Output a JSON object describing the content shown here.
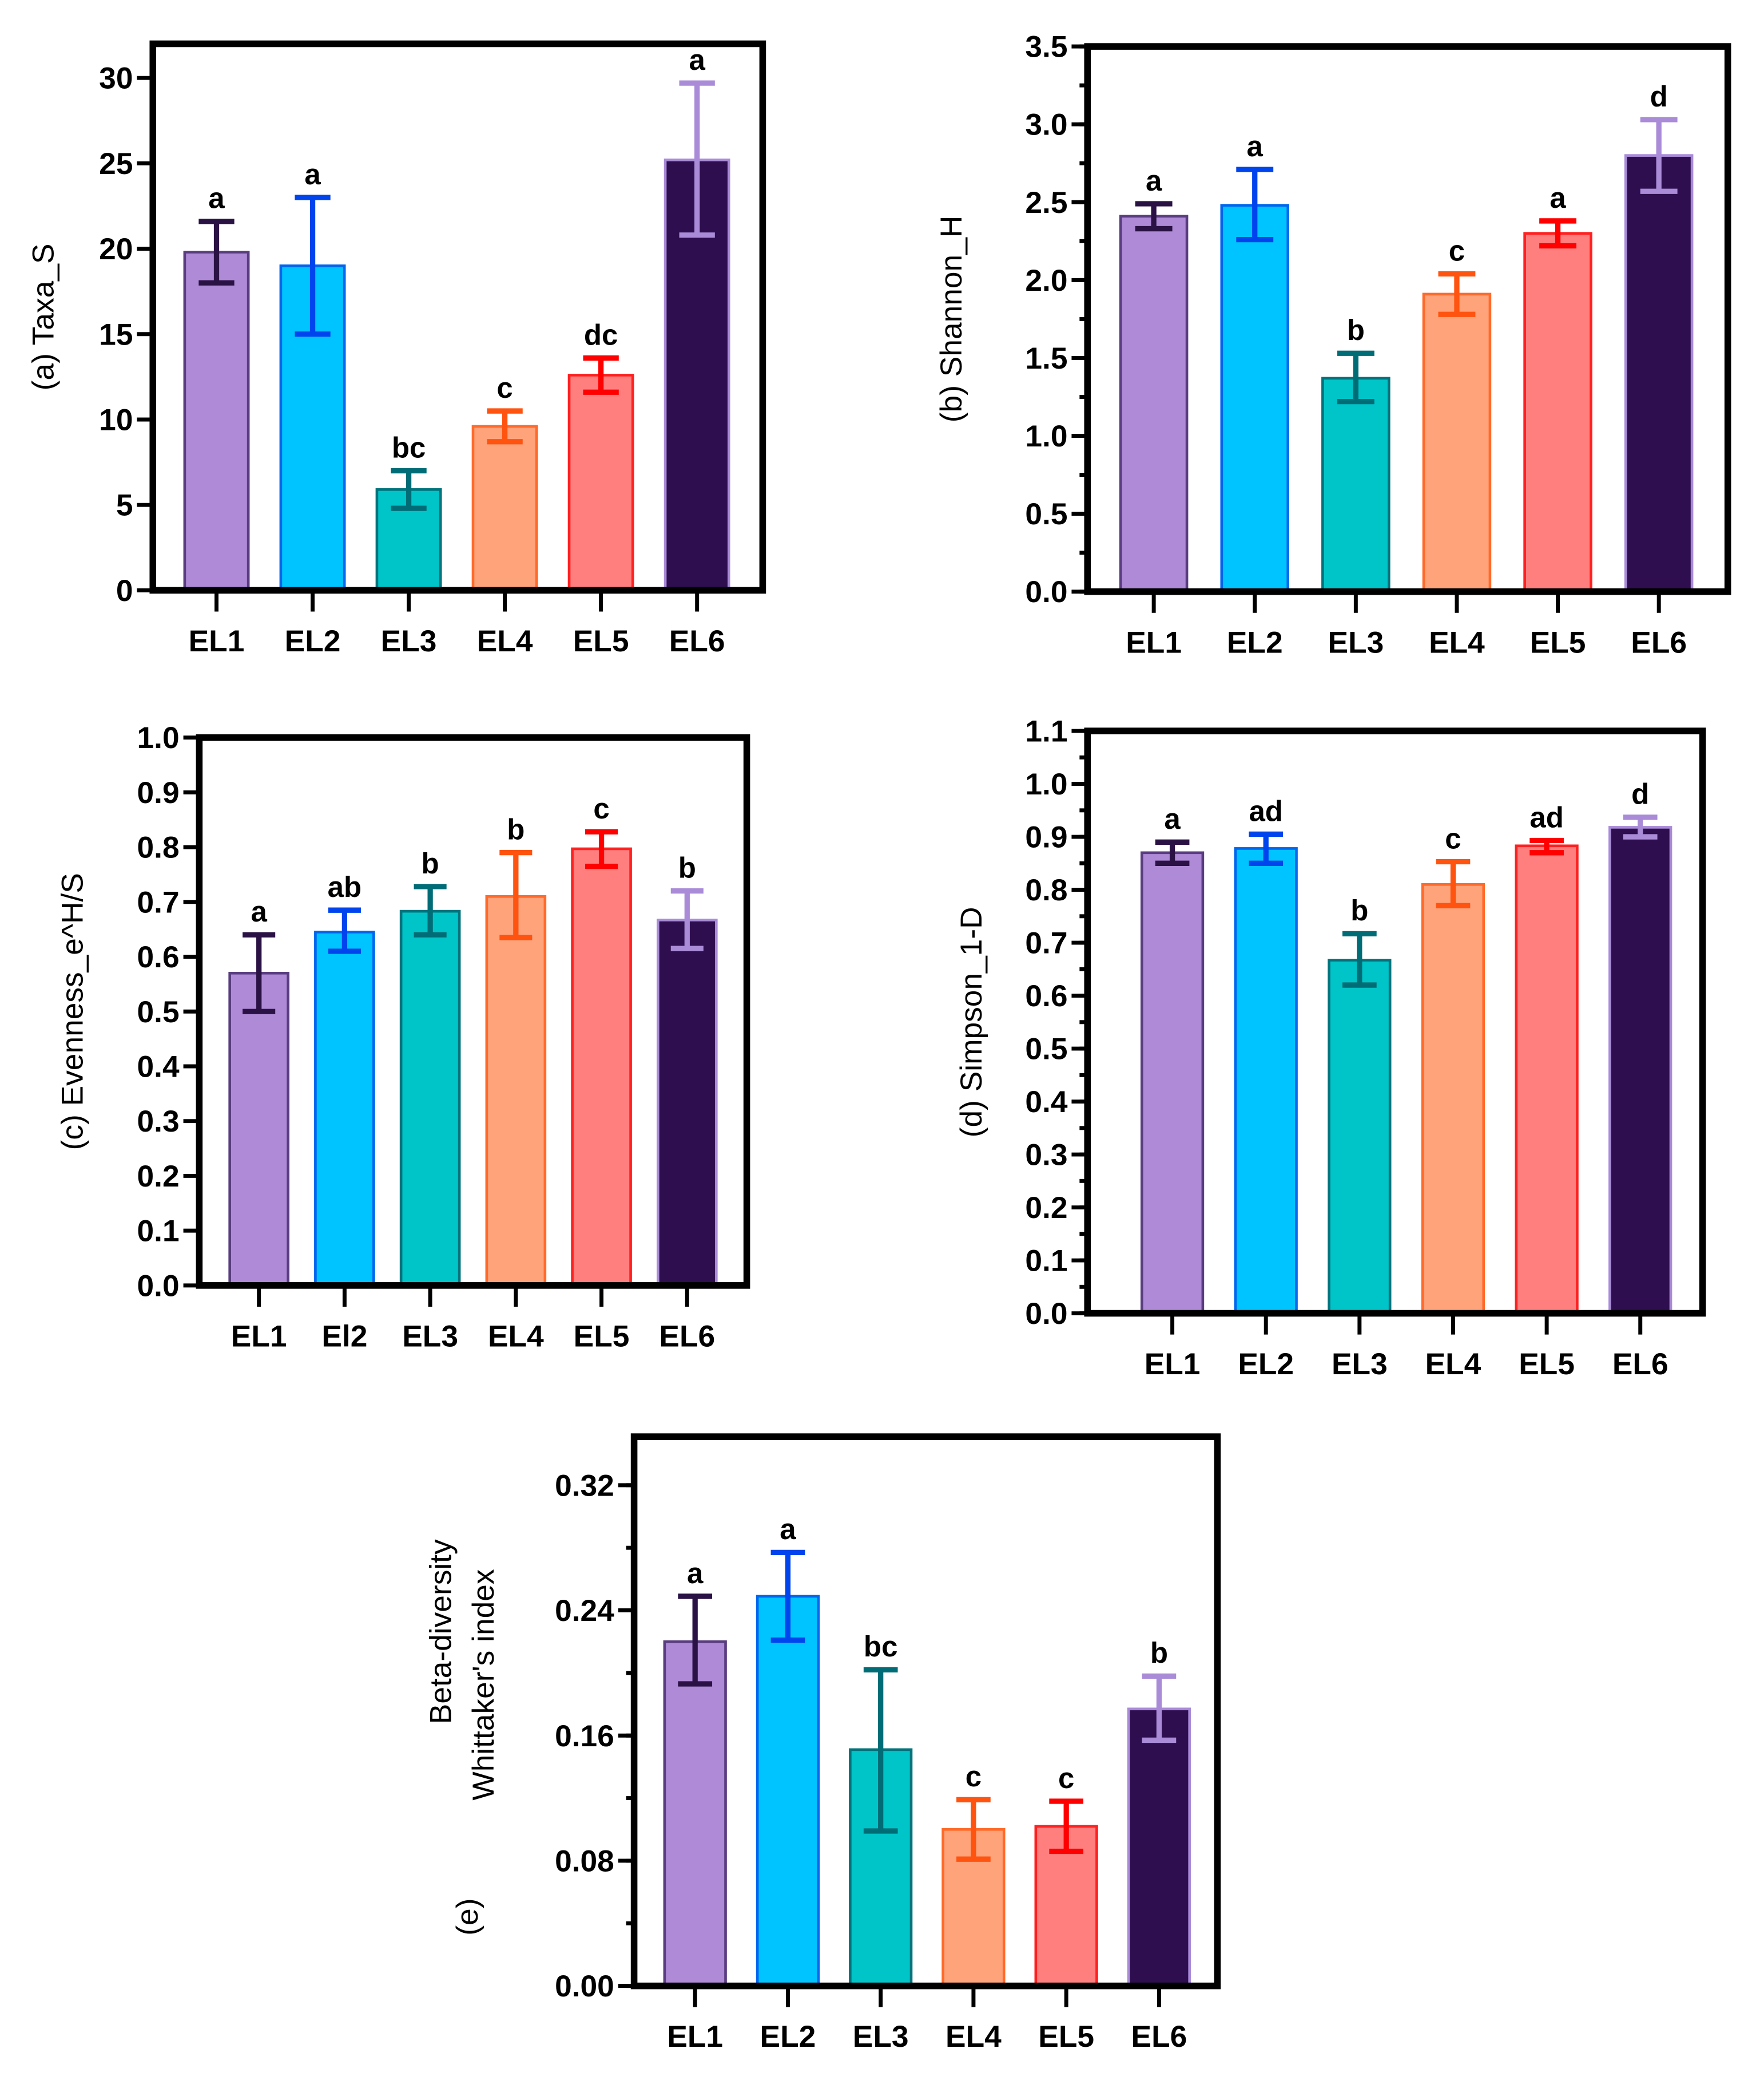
{
  "colors": {
    "fill": [
      "#AF8AD6",
      "#00C4FF",
      "#00C5C8",
      "#FFA37B",
      "#FF7F7F",
      "#2E0E4E"
    ],
    "stroke": [
      "#5A3D80",
      "#0066EE",
      "#00737C",
      "#FF6A2A",
      "#FF2020",
      "#A98BD8"
    ],
    "error": [
      "#2B1245",
      "#0044EE",
      "#006C76",
      "#FF5310",
      "#FF0000",
      "#A98BD8"
    ]
  },
  "chart_data": [
    {
      "id": "a",
      "type": "bar",
      "ylabel": "(a)  Taxa_S",
      "categories": [
        "EL1",
        "EL2",
        "EL3",
        "EL4",
        "EL5",
        "EL6"
      ],
      "values": [
        19.8,
        19.0,
        5.9,
        9.6,
        12.6,
        25.2
      ],
      "err_low": [
        18.0,
        15.0,
        4.8,
        8.7,
        11.6,
        20.8
      ],
      "err_high": [
        21.6,
        23.0,
        7.0,
        10.5,
        13.6,
        29.7
      ],
      "letters": [
        "a",
        "a",
        "bc",
        "c",
        "dc",
        "a"
      ],
      "ylim": [
        0,
        32
      ],
      "yticks": [
        "0",
        "5",
        "10",
        "15",
        "20",
        "25",
        "30"
      ],
      "ytick_values": [
        0,
        5,
        10,
        15,
        20,
        25,
        30
      ],
      "minor_step": null
    },
    {
      "id": "b",
      "type": "bar",
      "ylabel": "(b)  Shannon_H",
      "categories": [
        "EL1",
        "EL2",
        "EL3",
        "EL4",
        "EL5",
        "EL6"
      ],
      "values": [
        2.41,
        2.48,
        1.37,
        1.91,
        2.3,
        2.8
      ],
      "err_low": [
        2.33,
        2.26,
        1.22,
        1.78,
        2.22,
        2.57
      ],
      "err_high": [
        2.49,
        2.71,
        1.53,
        2.04,
        2.38,
        3.03
      ],
      "letters": [
        "a",
        "a",
        "b",
        "c",
        "a",
        "d"
      ],
      "ylim": [
        0,
        3.5
      ],
      "yticks": [
        "0.0",
        "0.5",
        "1.0",
        "1.5",
        "2.0",
        "2.5",
        "3.0",
        "3.5"
      ],
      "ytick_values": [
        0,
        0.5,
        1.0,
        1.5,
        2.0,
        2.5,
        3.0,
        3.5
      ],
      "minor_step": 0.25
    },
    {
      "id": "c",
      "type": "bar",
      "ylabel": "(c)  Evenness_e^H/S",
      "categories": [
        "EL1",
        "El2",
        "EL3",
        "EL4",
        "EL5",
        "EL6"
      ],
      "values": [
        0.57,
        0.645,
        0.683,
        0.71,
        0.797,
        0.667
      ],
      "err_low": [
        0.5,
        0.61,
        0.64,
        0.635,
        0.765,
        0.615
      ],
      "err_high": [
        0.64,
        0.685,
        0.728,
        0.79,
        0.828,
        0.72
      ],
      "letters": [
        "a",
        "ab",
        "b",
        "b",
        "c",
        "b"
      ],
      "ylim": [
        0,
        1.0
      ],
      "yticks": [
        "0.0",
        "0.1",
        "0.2",
        "0.3",
        "0.4",
        "0.5",
        "0.6",
        "0.7",
        "0.8",
        "0.9",
        "1.0"
      ],
      "ytick_values": [
        0,
        0.1,
        0.2,
        0.3,
        0.4,
        0.5,
        0.6,
        0.7,
        0.8,
        0.9,
        1.0
      ],
      "minor_step": null
    },
    {
      "id": "d",
      "type": "bar",
      "ylabel": "(d)  Simpson_1-D",
      "categories": [
        "EL1",
        "EL2",
        "EL3",
        "EL4",
        "EL5",
        "EL6"
      ],
      "values": [
        0.87,
        0.878,
        0.667,
        0.81,
        0.883,
        0.918
      ],
      "err_low": [
        0.85,
        0.85,
        0.62,
        0.77,
        0.87,
        0.9
      ],
      "err_high": [
        0.89,
        0.905,
        0.717,
        0.853,
        0.893,
        0.937
      ],
      "letters": [
        "a",
        "ad",
        "b",
        "c",
        "ad",
        "d"
      ],
      "ylim": [
        0,
        1.1
      ],
      "yticks": [
        "0.0",
        "0.1",
        "0.2",
        "0.3",
        "0.4",
        "0.5",
        "0.6",
        "0.7",
        "0.8",
        "0.9",
        "1.0",
        "1.1"
      ],
      "ytick_values": [
        0,
        0.1,
        0.2,
        0.3,
        0.4,
        0.5,
        0.6,
        0.7,
        0.8,
        0.9,
        1.0,
        1.1
      ],
      "minor_step": 0.05
    },
    {
      "id": "e",
      "type": "bar",
      "ylabel_lines": [
        "Beta-diversity",
        "Whittaker's index"
      ],
      "ylabel_prefix": "(e)",
      "categories": [
        "EL1",
        "EL2",
        "EL3",
        "EL4",
        "EL5",
        "EL6"
      ],
      "values": [
        0.22,
        0.249,
        0.151,
        0.1,
        0.102,
        0.177
      ],
      "err_low": [
        0.193,
        0.221,
        0.099,
        0.081,
        0.086,
        0.157
      ],
      "err_high": [
        0.249,
        0.277,
        0.202,
        0.119,
        0.118,
        0.198
      ],
      "letters": [
        "a",
        "a",
        "bc",
        "c",
        "c",
        "b"
      ],
      "ylim": [
        0,
        0.351
      ],
      "yticks": [
        "0.00",
        "0.08",
        "0.16",
        "0.24",
        "0.32"
      ],
      "ytick_values": [
        0,
        0.08,
        0.16,
        0.24,
        0.32
      ],
      "minor_step": 0.04
    }
  ]
}
